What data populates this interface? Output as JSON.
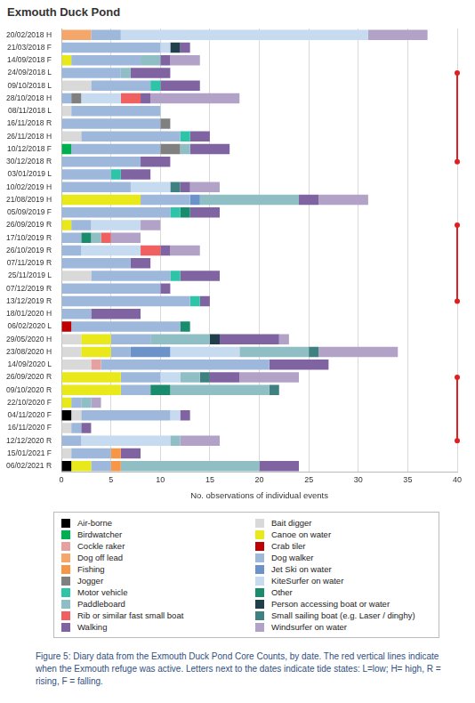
{
  "chart_data": {
    "type": "bar",
    "title": "Exmouth Duck Pond",
    "orientation": "horizontal",
    "stacked": true,
    "grid": true,
    "legend": "bottom",
    "x_label": "No. observations of individual events",
    "caption": "Figure 5: Diary data from the Exmouth Duck Pond Core Counts, by date. The red vertical lines indicate when the Exmouth refuge was active. Letters next to the dates indicate tide states: L=low; H= high, R = rising, F = falling.",
    "xlim": [
      0,
      40
    ],
    "xticks": [
      0,
      5,
      10,
      15,
      20,
      25,
      30,
      35,
      40
    ],
    "categories": [
      "20/02/2018 H",
      "21/03/2018 F",
      "14/09/2018 F",
      "24/09/2018 L",
      "09/10/2018 L",
      "28/10/2018 H",
      "08/11/2018 L",
      "16/11/2018 R",
      "26/11/2018 H",
      "10/12/2018 F",
      "30/12/2018 R",
      "03/01/2019 L",
      "10/02/2019 H",
      "21/08/2019 H",
      "05/09/2019 F",
      "26/09/2019 R",
      "17/10/2019 R",
      "26/10/2019 R",
      "07/11/2019 R",
      "25/11/2019 L",
      "07/12/2019 R",
      "13/12/2019 R",
      "18/01/2020 H",
      "06/02/2020 L",
      "29/05/2020 H",
      "23/08/2020 H",
      "14/09/2020 L",
      "26/09/2020 R",
      "09/10/2020 R",
      "22/10/2020 F",
      "04/11/2020 F",
      "16/11/2020 F",
      "12/12/2020 R",
      "15/01/2021 F",
      "06/02/2021 R"
    ],
    "refuge_lines": {
      "x": 40,
      "ranges": [
        {
          "from": "24/09/2018 L",
          "to": "30/12/2018 R"
        },
        {
          "from": "26/09/2019 R",
          "to": "13/12/2019 R"
        },
        {
          "from": "26/09/2020 R",
          "to": "12/12/2020 R"
        }
      ]
    },
    "series": [
      {
        "name": "Air-borne",
        "color": "#000000",
        "values": [
          0,
          0,
          0,
          0,
          0,
          0,
          0,
          0,
          0,
          0,
          0,
          0,
          0,
          0,
          0,
          0,
          0,
          0,
          0,
          0,
          0,
          0,
          0,
          0,
          0,
          0,
          0,
          0,
          0,
          0,
          1,
          0,
          0,
          0,
          1
        ]
      },
      {
        "name": "Bait digger",
        "color": "#d9d9d9",
        "values": [
          0,
          0,
          0,
          0,
          3,
          0,
          1,
          0,
          2,
          0,
          0,
          0,
          0,
          0,
          0,
          0,
          0,
          0,
          0,
          3,
          0,
          0,
          0,
          0,
          2,
          2,
          3,
          0,
          0,
          0,
          1,
          1,
          0,
          1,
          0
        ]
      },
      {
        "name": "Birdwatcher",
        "color": "#00b050",
        "values": [
          0,
          0,
          0,
          0,
          0,
          0,
          0,
          0,
          0,
          1,
          0,
          0,
          0,
          0,
          0,
          0,
          0,
          0,
          0,
          0,
          0,
          0,
          0,
          0,
          0,
          0,
          0,
          0,
          0,
          0,
          0,
          0,
          0,
          0,
          0
        ]
      },
      {
        "name": "Canoe on water",
        "color": "#e8e81a",
        "values": [
          0,
          0,
          1,
          0,
          0,
          0,
          0,
          0,
          0,
          0,
          0,
          0,
          0,
          8,
          0,
          1,
          0,
          0,
          0,
          0,
          0,
          0,
          0,
          0,
          3,
          3,
          0,
          6,
          6,
          1,
          0,
          0,
          0,
          0,
          2
        ]
      },
      {
        "name": "Cockle raker",
        "color": "#e6a0a0",
        "values": [
          0,
          0,
          0,
          0,
          0,
          0,
          0,
          0,
          0,
          0,
          0,
          0,
          0,
          0,
          0,
          0,
          0,
          0,
          0,
          0,
          0,
          0,
          0,
          0,
          0,
          0,
          1,
          0,
          0,
          0,
          0,
          0,
          0,
          0,
          0
        ]
      },
      {
        "name": "Crab tiler",
        "color": "#c00000",
        "values": [
          0,
          0,
          0,
          0,
          0,
          0,
          0,
          0,
          0,
          0,
          0,
          0,
          0,
          0,
          0,
          0,
          0,
          0,
          0,
          0,
          0,
          0,
          0,
          1,
          0,
          0,
          0,
          0,
          0,
          0,
          0,
          0,
          0,
          0,
          0
        ]
      },
      {
        "name": "Dog off lead",
        "color": "#f5a66b",
        "values": [
          3,
          0,
          0,
          0,
          0,
          0,
          0,
          0,
          0,
          0,
          0,
          0,
          0,
          0,
          0,
          0,
          0,
          0,
          0,
          0,
          0,
          0,
          0,
          0,
          0,
          0,
          0,
          0,
          0,
          0,
          0,
          0,
          0,
          0,
          0
        ]
      },
      {
        "name": "Dog walker",
        "color": "#9db8db",
        "values": [
          3,
          10,
          7,
          6,
          6,
          1,
          9,
          10,
          10,
          9,
          8,
          5,
          7,
          5,
          11,
          2,
          2,
          2,
          7,
          8,
          10,
          13,
          3,
          11,
          4,
          2,
          17,
          4,
          3,
          1,
          9,
          1,
          2,
          4,
          2
        ]
      },
      {
        "name": "Fishing",
        "color": "#f79646",
        "values": [
          0,
          0,
          0,
          0,
          0,
          0,
          0,
          0,
          0,
          0,
          0,
          0,
          0,
          0,
          0,
          0,
          0,
          0,
          0,
          0,
          0,
          0,
          0,
          0,
          0,
          0,
          0,
          0,
          0,
          0,
          0,
          0,
          0,
          1,
          1
        ]
      },
      {
        "name": "Jet Ski on water",
        "color": "#6b93c9",
        "values": [
          0,
          0,
          0,
          0,
          0,
          0,
          0,
          0,
          0,
          0,
          0,
          0,
          0,
          1,
          0,
          0,
          0,
          0,
          0,
          0,
          0,
          0,
          0,
          0,
          0,
          4,
          0,
          0,
          0,
          0,
          0,
          0,
          0,
          0,
          0
        ]
      },
      {
        "name": "Jogger",
        "color": "#808080",
        "values": [
          0,
          0,
          0,
          0,
          0,
          1,
          0,
          1,
          0,
          2,
          0,
          0,
          0,
          0,
          0,
          0,
          0,
          0,
          0,
          0,
          0,
          0,
          0,
          0,
          0,
          0,
          0,
          0,
          0,
          0,
          0,
          0,
          0,
          0,
          0
        ]
      },
      {
        "name": "KiteSurfer on water",
        "color": "#c6daf0",
        "values": [
          25,
          1,
          0,
          0,
          0,
          4,
          0,
          0,
          0,
          0,
          0,
          0,
          4,
          0,
          0,
          5,
          0,
          6,
          0,
          0,
          0,
          0,
          0,
          0,
          0,
          7,
          0,
          2,
          0,
          0,
          1,
          0,
          9,
          0,
          0
        ]
      },
      {
        "name": "Motor vehicle",
        "color": "#2ec4a8",
        "values": [
          0,
          0,
          0,
          0,
          1,
          0,
          0,
          0,
          1,
          0,
          0,
          1,
          0,
          0,
          1,
          0,
          0,
          0,
          0,
          1,
          0,
          1,
          0,
          0,
          0,
          0,
          0,
          0,
          0,
          0,
          0,
          0,
          0,
          0,
          0
        ]
      },
      {
        "name": "Other",
        "color": "#1a8c6e",
        "values": [
          0,
          0,
          0,
          0,
          0,
          0,
          0,
          0,
          0,
          0,
          0,
          0,
          0,
          0,
          1,
          0,
          1,
          0,
          0,
          0,
          0,
          0,
          0,
          1,
          0,
          0,
          0,
          0,
          2,
          0,
          0,
          0,
          0,
          0,
          0
        ]
      },
      {
        "name": "Paddleboard",
        "color": "#8fbfc4",
        "values": [
          0,
          0,
          2,
          1,
          0,
          0,
          0,
          0,
          0,
          1,
          0,
          0,
          0,
          10,
          0,
          0,
          1,
          0,
          0,
          0,
          0,
          0,
          0,
          0,
          6,
          7,
          0,
          2,
          10,
          1,
          0,
          0,
          1,
          0,
          14
        ]
      },
      {
        "name": "Person accessing boat or water",
        "color": "#203f4a",
        "values": [
          0,
          1,
          0,
          0,
          0,
          0,
          0,
          0,
          0,
          0,
          0,
          0,
          0,
          0,
          0,
          0,
          0,
          0,
          0,
          0,
          0,
          0,
          0,
          0,
          1,
          0,
          0,
          0,
          0,
          0,
          0,
          0,
          0,
          0,
          0
        ]
      },
      {
        "name": "Rib or similar fast small boat",
        "color": "#f06060",
        "values": [
          0,
          0,
          0,
          0,
          0,
          2,
          0,
          0,
          0,
          0,
          0,
          0,
          0,
          0,
          0,
          0,
          1,
          2,
          0,
          0,
          0,
          0,
          0,
          0,
          0,
          0,
          0,
          0,
          0,
          0,
          0,
          0,
          0,
          0,
          0
        ]
      },
      {
        "name": "Small sailing boat (e.g. Laser / dinghy)",
        "color": "#3f8080",
        "values": [
          0,
          0,
          0,
          0,
          0,
          0,
          0,
          0,
          0,
          0,
          0,
          0,
          1,
          0,
          0,
          0,
          0,
          0,
          0,
          0,
          0,
          0,
          0,
          0,
          0,
          1,
          0,
          1,
          1,
          0,
          0,
          0,
          0,
          0,
          0
        ]
      },
      {
        "name": "Walking",
        "color": "#8064a2",
        "values": [
          0,
          1,
          1,
          4,
          4,
          1,
          0,
          0,
          2,
          4,
          3,
          3,
          1,
          2,
          3,
          0,
          0,
          1,
          2,
          4,
          1,
          1,
          5,
          0,
          6,
          0,
          6,
          3,
          0,
          0,
          1,
          1,
          0,
          2,
          4
        ]
      },
      {
        "name": "Windsurfer on water",
        "color": "#b3a2c7",
        "values": [
          6,
          0,
          3,
          0,
          0,
          9,
          0,
          0,
          0,
          0,
          0,
          0,
          3,
          5,
          0,
          2,
          3,
          3,
          0,
          0,
          0,
          0,
          0,
          0,
          1,
          8,
          0,
          6,
          0,
          1,
          0,
          0,
          4,
          0,
          0
        ]
      }
    ]
  }
}
